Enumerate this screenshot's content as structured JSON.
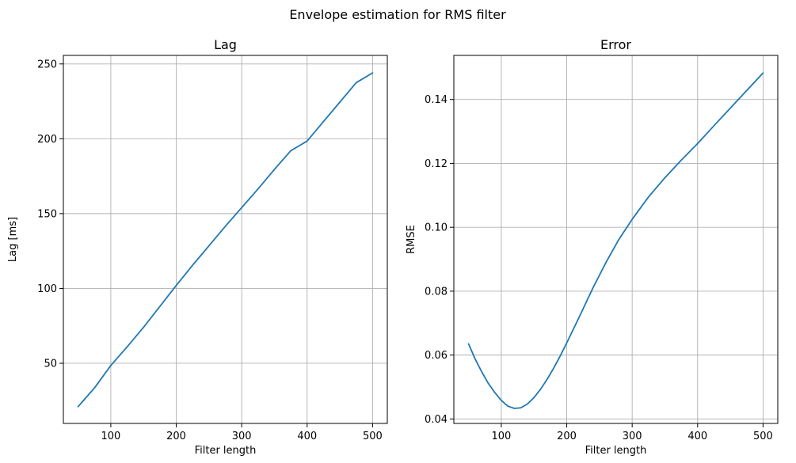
{
  "figure": {
    "suptitle": "Envelope estimation for RMS filter"
  },
  "colors": {
    "series": "#1f77b4",
    "grid": "#b0b0b0",
    "axes": "#000000"
  },
  "chart_data": [
    {
      "type": "line",
      "title": "Lag",
      "xlabel": "Filter length",
      "ylabel": "Lag [ms]",
      "xlim": [
        27.5,
        522.5
      ],
      "ylim": [
        9.8,
        255.7
      ],
      "xticks": [
        100,
        200,
        300,
        400,
        500
      ],
      "xtick_labels": [
        "100",
        "200",
        "300",
        "400",
        "500"
      ],
      "yticks": [
        50,
        100,
        150,
        200,
        250
      ],
      "ytick_labels": [
        "50",
        "100",
        "150",
        "200",
        "250"
      ],
      "grid": true,
      "series": [
        {
          "name": "Lag",
          "x": [
            50,
            60,
            75,
            100,
            125,
            150,
            175,
            200,
            225,
            250,
            275,
            300,
            325,
            350,
            375,
            400,
            425,
            450,
            475,
            500
          ],
          "y": [
            21,
            26,
            33.5,
            48.5,
            61,
            74,
            88,
            102,
            115.5,
            128.5,
            141.5,
            154,
            166.5,
            179.5,
            192,
            198.5,
            211.5,
            224.5,
            237.5,
            244
          ]
        }
      ]
    },
    {
      "type": "line",
      "title": "Error",
      "xlabel": "Filter length",
      "ylabel": "RMSE",
      "xlim": [
        27.5,
        522.5
      ],
      "ylim": [
        0.0386,
        0.1538
      ],
      "xticks": [
        100,
        200,
        300,
        400,
        500
      ],
      "xtick_labels": [
        "100",
        "200",
        "300",
        "400",
        "500"
      ],
      "yticks": [
        0.04,
        0.06,
        0.08,
        0.1,
        0.12,
        0.14
      ],
      "ytick_labels": [
        "0.04",
        "0.06",
        "0.08",
        "0.10",
        "0.12",
        "0.14"
      ],
      "grid": true,
      "series": [
        {
          "name": "RMSE",
          "x": [
            50,
            60,
            70,
            80,
            90,
            100,
            110,
            120,
            130,
            140,
            150,
            160,
            170,
            180,
            190,
            200,
            220,
            240,
            260,
            280,
            300,
            325,
            350,
            375,
            400,
            425,
            450,
            475,
            500
          ],
          "y": [
            0.0635,
            0.0588,
            0.0548,
            0.0512,
            0.0483,
            0.0458,
            0.044,
            0.0433,
            0.0435,
            0.0447,
            0.0467,
            0.0493,
            0.0524,
            0.0559,
            0.0597,
            0.0638,
            0.0723,
            0.081,
            0.089,
            0.0963,
            0.1025,
            0.1095,
            0.1155,
            0.121,
            0.1262,
            0.1318,
            0.1373,
            0.1428,
            0.1483
          ]
        }
      ]
    }
  ]
}
